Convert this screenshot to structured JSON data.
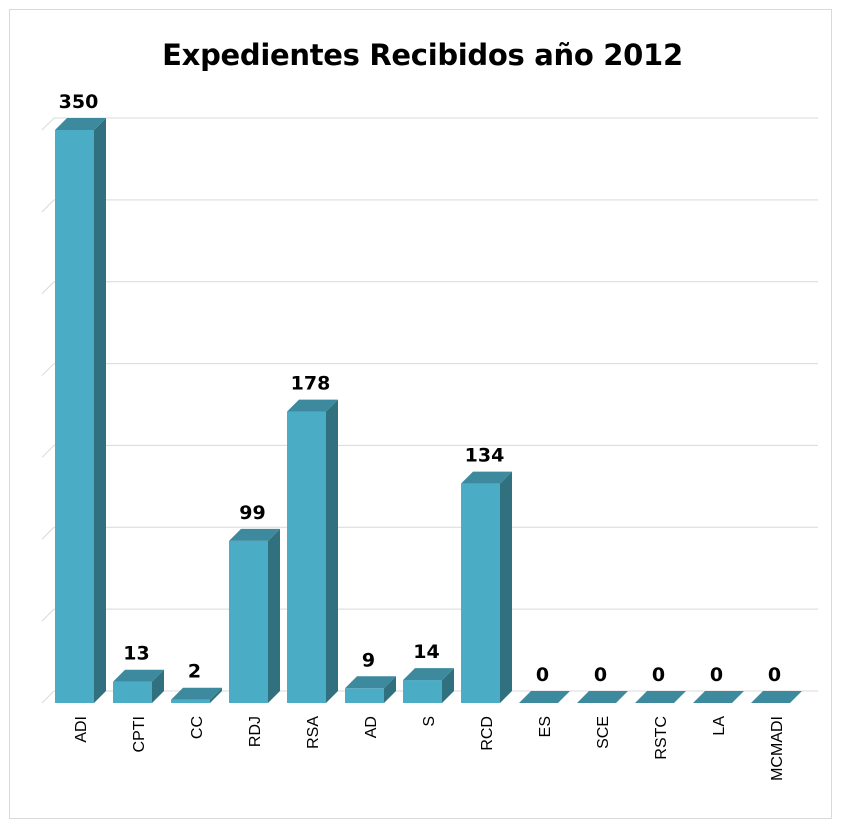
{
  "chart_data": {
    "type": "bar",
    "title": "Expedientes Recibidos año 2012",
    "categories": [
      "ADI",
      "CPTI",
      "CC",
      "RDJ",
      "RSA",
      "AD",
      "S",
      "RCD",
      "ES",
      "SCE",
      "RSTC",
      "LA",
      "MCMADI"
    ],
    "values": [
      350,
      13,
      2,
      99,
      178,
      9,
      14,
      134,
      0,
      0,
      0,
      0,
      0
    ],
    "ylim": [
      0,
      350
    ],
    "grid": true,
    "legend": "none",
    "style": "3d-column"
  },
  "colors": {
    "bar_front": "#4bacc6",
    "bar_side": "#31707f",
    "bar_top": "#3d8a9e",
    "gridline": "#d9d9d9",
    "floor": "#3d8a9e"
  }
}
